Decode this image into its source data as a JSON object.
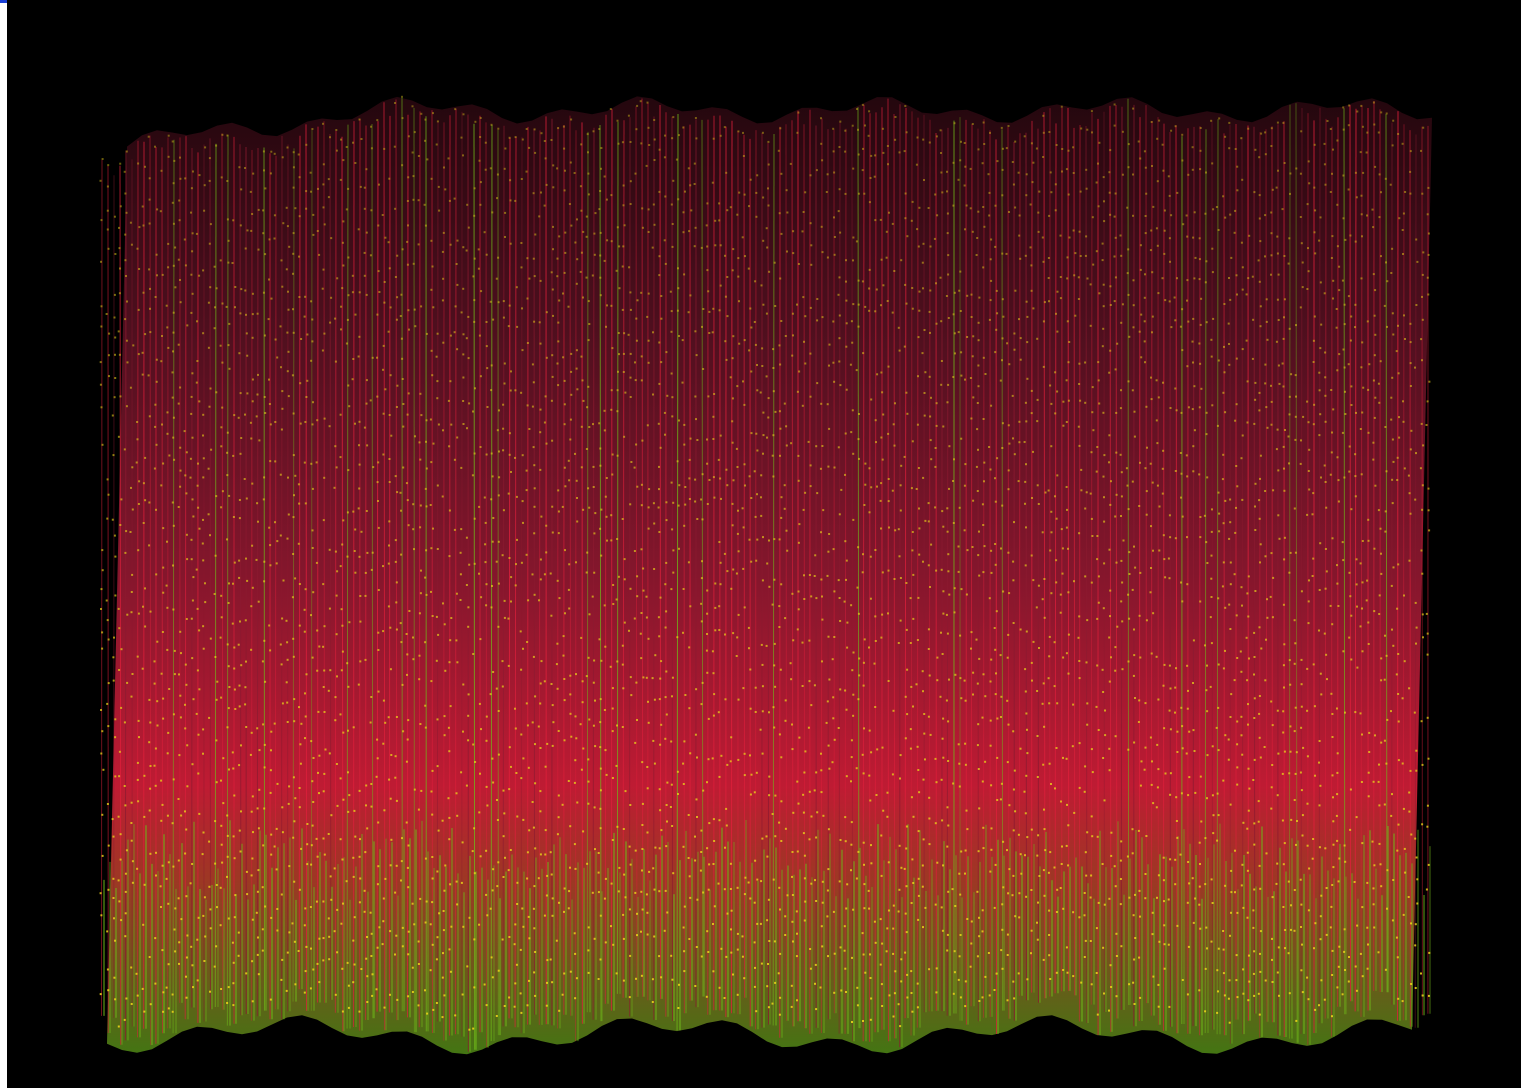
{
  "scene": {
    "description_icon": "point-cloud-mesh-icon",
    "colors": {
      "background": "#000000",
      "mesh_dark": "#3a0a14",
      "mesh_mid": "#8c1a30",
      "mesh_bright": "#e0203c",
      "base_green": "#6fb81a",
      "vertex_yellow": "#e8d21a",
      "corner_tab": "#1a3fd6"
    }
  }
}
